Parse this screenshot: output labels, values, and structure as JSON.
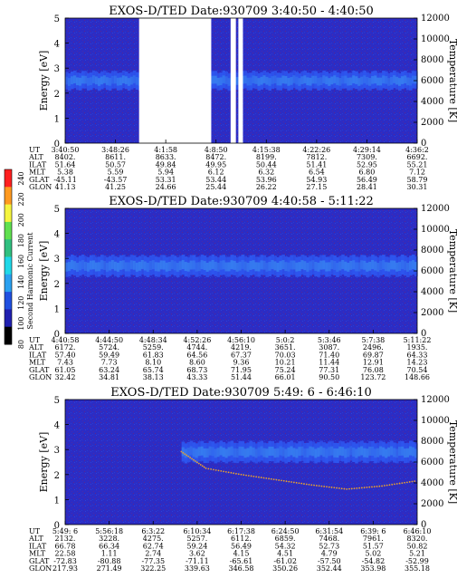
{
  "colors": {
    "background": "#2c2cc4",
    "band": "#2d55ee",
    "band_core": "#3a8cf0",
    "gap": "#ffffff"
  },
  "colorbar": {
    "label": "Second Harmonic Current",
    "ticks": [
      "240",
      "220",
      "200",
      "180",
      "160",
      "140",
      "120",
      "100",
      "80"
    ],
    "colors": [
      "#ff2020",
      "#ff9a20",
      "#f5f540",
      "#60e050",
      "#30c080",
      "#20d8e8",
      "#2aa0f0",
      "#2050e0",
      "#2020b0",
      "#000000"
    ]
  },
  "chart_data": [
    {
      "type": "heatmap",
      "title": "EXOS-D/TED   Date:930709  3:40:50 - 4:40:50",
      "ylabel": "Energy [eV]",
      "ylabel_right": "Temperature [K]",
      "ylim": [
        0,
        5
      ],
      "ylim_right": [
        0,
        12000
      ],
      "yticks": [
        "0",
        "1",
        "2",
        "3",
        "4",
        "5"
      ],
      "yticks_right": [
        "0",
        "2000",
        "4000",
        "6000",
        "8000",
        "10000",
        "12000"
      ],
      "band": {
        "center_ev": 2.5,
        "half_width_ev": 0.35
      },
      "data_gaps": [
        [
          0.21,
          0.415
        ],
        [
          0.47,
          0.485
        ],
        [
          0.492,
          0.505
        ]
      ],
      "temperature_trace": [],
      "table": {
        "row_labels": [
          "UT",
          "ALT",
          "ILAT",
          "MLT",
          "GLAT",
          "GLON"
        ],
        "columns": [
          [
            "3:40:50",
            "8402.",
            "51.64",
            "5.38",
            "-45.11",
            "41.13"
          ],
          [
            "3:48:26",
            "8611.",
            "50.57",
            "5.59",
            "-43.57",
            "41.25"
          ],
          [
            "4:1:58",
            "8633.",
            "49.84",
            "5.94",
            "53.31",
            "24.66"
          ],
          [
            "4:8:50",
            "8472.",
            "49.95",
            "6.12",
            "53.44",
            "25.44"
          ],
          [
            "4:15:38",
            "8199.",
            "50.44",
            "6.32",
            "53.96",
            "26.22"
          ],
          [
            "4:22:26",
            "7812.",
            "51.41",
            "6.54",
            "54.93",
            "27.15"
          ],
          [
            "4:29:14",
            "7309.",
            "52.95",
            "6.80",
            "56.49",
            "28.41"
          ],
          [
            "4:36:2",
            "6692.",
            "55.21",
            "7.12",
            "58.79",
            "30.31"
          ]
        ]
      }
    },
    {
      "type": "heatmap",
      "title": "EXOS-D/TED   Date:930709  4:40:58 - 5:11:22",
      "ylabel": "Energy [eV]",
      "ylabel_right": "Temperature [K]",
      "ylim": [
        0,
        5
      ],
      "ylim_right": [
        0,
        12000
      ],
      "yticks": [
        "0",
        "1",
        "2",
        "3",
        "4",
        "5"
      ],
      "yticks_right": [
        "0",
        "2000",
        "4000",
        "6000",
        "8000",
        "10000",
        "12000"
      ],
      "band": {
        "center_ev": 2.7,
        "half_width_ev": 0.4
      },
      "data_gaps": [],
      "temperature_trace": [],
      "table": {
        "row_labels": [
          "UT",
          "ALT",
          "ILAT",
          "MLT",
          "GLAT",
          "GLON"
        ],
        "columns": [
          [
            "4:40:58",
            "6172.",
            "57.40",
            "7.43",
            "61.05",
            "32.42"
          ],
          [
            "4:44:50",
            "5724.",
            "59.49",
            "7.73",
            "63.24",
            "34.81"
          ],
          [
            "4:48:34",
            "5259.",
            "61.83",
            "8.10",
            "65.74",
            "38.13"
          ],
          [
            "4:52:26",
            "4744.",
            "64.56",
            "8.60",
            "68.73",
            "43.33"
          ],
          [
            "4:56:10",
            "4219.",
            "67.37",
            "9.36",
            "71.95",
            "51.44"
          ],
          [
            "5:0:2",
            "3651.",
            "70.03",
            "10.21",
            "75.24",
            "66.01"
          ],
          [
            "5:3:46",
            "3087.",
            "71.40",
            "11.44",
            "77.31",
            "90.50"
          ],
          [
            "5:7:38",
            "2496.",
            "69.87",
            "12.91",
            "76.08",
            "123.72"
          ],
          [
            "5:11:22",
            "1935.",
            "64.33",
            "14.23",
            "70.54",
            "148.66"
          ]
        ]
      }
    },
    {
      "type": "heatmap",
      "title": "EXOS-D/TED   Date:930709  5:49: 6 - 6:46:10",
      "ylabel": "Energy [eV]",
      "ylabel_right": "Temperature [K]",
      "ylim": [
        0,
        5
      ],
      "ylim_right": [
        0,
        12000
      ],
      "yticks": [
        "0",
        "1",
        "2",
        "3",
        "4",
        "5"
      ],
      "yticks_right": [
        "0",
        "2000",
        "4000",
        "6000",
        "8000",
        "10000",
        "12000"
      ],
      "band": {
        "center_ev": 2.9,
        "half_width_ev": 0.4
      },
      "data_gaps": [],
      "temperature_trace": [
        [
          0.33,
          7000
        ],
        [
          0.4,
          5400
        ],
        [
          0.5,
          4800
        ],
        [
          0.6,
          4300
        ],
        [
          0.7,
          3800
        ],
        [
          0.8,
          3400
        ],
        [
          0.9,
          3700
        ],
        [
          1.0,
          4200
        ]
      ],
      "table": {
        "row_labels": [
          "UT",
          "ALT",
          "ILAT",
          "MLT",
          "GLAT",
          "GLON"
        ],
        "columns": [
          [
            "5:49: 6",
            "2132.",
            "66.78",
            "22.58",
            "-72.83",
            "217.93"
          ],
          [
            "5:56:18",
            "3228.",
            "66.34",
            "1.11",
            "-80.88",
            "271.49"
          ],
          [
            "6:3:22",
            "4275.",
            "62.74",
            "2.74",
            "-77.35",
            "322.25"
          ],
          [
            "6:10:34",
            "5257.",
            "59.24",
            "3.62",
            "-71.11",
            "339.63"
          ],
          [
            "6:17:38",
            "6112.",
            "56.49",
            "4.15",
            "-65.61",
            "346.58"
          ],
          [
            "6:24:50",
            "6859.",
            "54.32",
            "4.51",
            "-61.02",
            "350.26"
          ],
          [
            "6:31:54",
            "7468.",
            "52.73",
            "4.79",
            "-57.50",
            "352.44"
          ],
          [
            "6:39: 6",
            "7961.",
            "51.57",
            "5.02",
            "-54.82",
            "353.98"
          ],
          [
            "6:46:10",
            "8320.",
            "50.82",
            "5.21",
            "-52.99",
            "355.18"
          ]
        ]
      }
    }
  ]
}
